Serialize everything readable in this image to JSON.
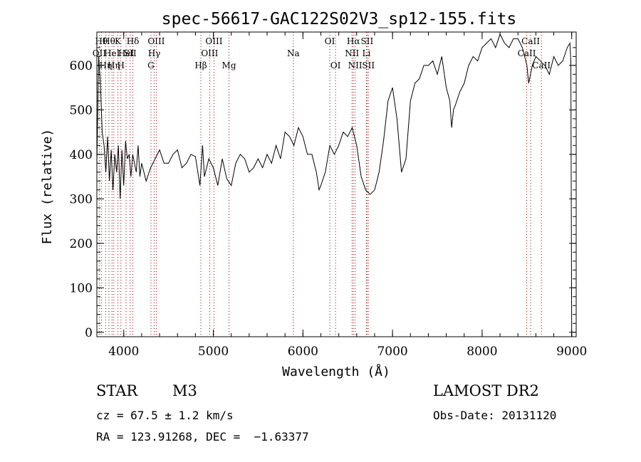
{
  "chart_data": {
    "type": "line",
    "title": "spec-56617-GAC122S02V3_sp12-155.fits",
    "xlabel": "Wavelength (Å)",
    "ylabel": "Flux (relative)",
    "xlim": [
      3700,
      9050
    ],
    "ylim": [
      -10,
      675
    ],
    "xticks": [
      4000,
      5000,
      6000,
      7000,
      8000,
      9000
    ],
    "yticks": [
      0,
      100,
      200,
      300,
      400,
      500,
      600
    ],
    "grid": false,
    "line_color": "#000000",
    "marker_color": "#8b0000",
    "series": [
      {
        "x": [
          3700,
          3720,
          3740,
          3760,
          3780,
          3800,
          3820,
          3840,
          3860,
          3880,
          3900,
          3920,
          3940,
          3960,
          3980,
          4000,
          4020,
          4040,
          4060,
          4080,
          4100,
          4120,
          4140,
          4160,
          4180,
          4200,
          4250,
          4300,
          4350,
          4400,
          4450,
          4500,
          4550,
          4600,
          4650,
          4700,
          4750,
          4800,
          4850,
          4880,
          4900,
          4950,
          5000,
          5050,
          5100,
          5150,
          5200,
          5250,
          5300,
          5350,
          5400,
          5450,
          5500,
          5550,
          5600,
          5650,
          5700,
          5750,
          5800,
          5850,
          5900,
          5950,
          6000,
          6050,
          6100,
          6150,
          6180,
          6200,
          6250,
          6300,
          6350,
          6400,
          6450,
          6500,
          6550,
          6600,
          6650,
          6700,
          6750,
          6800,
          6850,
          6900,
          6950,
          7000,
          7050,
          7100,
          7150,
          7200,
          7250,
          7300,
          7350,
          7400,
          7450,
          7500,
          7550,
          7600,
          7640,
          7660,
          7680,
          7700,
          7750,
          7800,
          7850,
          7900,
          7950,
          8000,
          8050,
          8100,
          8150,
          8200,
          8250,
          8300,
          8350,
          8400,
          8450,
          8500,
          8520,
          8540,
          8560,
          8600,
          8650,
          8700,
          8750,
          8800,
          8850,
          8900,
          8950,
          8980,
          8990,
          9000
        ],
        "y": [
          380,
          620,
          560,
          450,
          420,
          360,
          440,
          340,
          410,
          320,
          400,
          360,
          420,
          300,
          410,
          330,
          430,
          390,
          400,
          350,
          400,
          380,
          360,
          420,
          350,
          380,
          340,
          370,
          390,
          410,
          380,
          380,
          400,
          410,
          370,
          380,
          400,
          395,
          330,
          420,
          350,
          390,
          370,
          330,
          390,
          345,
          330,
          380,
          400,
          390,
          360,
          370,
          390,
          370,
          400,
          380,
          420,
          390,
          450,
          440,
          420,
          460,
          440,
          400,
          400,
          360,
          320,
          330,
          360,
          420,
          400,
          420,
          450,
          440,
          460,
          420,
          350,
          320,
          310,
          320,
          360,
          430,
          520,
          550,
          480,
          360,
          390,
          520,
          560,
          570,
          600,
          600,
          610,
          580,
          620,
          550,
          520,
          460,
          500,
          510,
          540,
          560,
          600,
          620,
          610,
          640,
          650,
          660,
          640,
          670,
          650,
          640,
          660,
          660,
          640,
          600,
          560,
          580,
          600,
          620,
          610,
          600,
          580,
          620,
          600,
          610,
          640,
          650,
          610,
          -10
        ]
      }
    ],
    "line_markers": [
      {
        "x": 3727,
        "label": "OII",
        "row": 2
      },
      {
        "x": 3750,
        "label": "Hθ",
        "row": 1
      },
      {
        "x": 3798,
        "label": "Hη",
        "row": 3
      },
      {
        "x": 3835,
        "label": "Hθ",
        "row": 1
      },
      {
        "x": 3869,
        "label": "HeI",
        "row": 2
      },
      {
        "x": 3889,
        "label": "Hη",
        "row": 3
      },
      {
        "x": 3934,
        "label": "K",
        "row": 1
      },
      {
        "x": 3968,
        "label": "H",
        "row": 3
      },
      {
        "x": 4026,
        "label": "HeI",
        "row": 2
      },
      {
        "x": 4072,
        "label": "SII",
        "row": 2
      },
      {
        "x": 4102,
        "label": "Hδ",
        "row": 1
      },
      {
        "x": 4304,
        "label": "G",
        "row": 3
      },
      {
        "x": 4340,
        "label": "Hγ",
        "row": 2
      },
      {
        "x": 4363,
        "label": "OIII",
        "row": 1
      },
      {
        "x": 4861,
        "label": "Hβ",
        "row": 3
      },
      {
        "x": 4959,
        "label": "OIII",
        "row": 2
      },
      {
        "x": 5007,
        "label": "OIII",
        "row": 1
      },
      {
        "x": 5175,
        "label": "Mg",
        "row": 3
      },
      {
        "x": 5893,
        "label": "Na",
        "row": 2
      },
      {
        "x": 6300,
        "label": "OI",
        "row": 1
      },
      {
        "x": 6364,
        "label": "OI",
        "row": 3
      },
      {
        "x": 6548,
        "label": "NII",
        "row": 2
      },
      {
        "x": 6563,
        "label": "Hα",
        "row": 1
      },
      {
        "x": 6583,
        "label": "NII",
        "row": 3
      },
      {
        "x": 6708,
        "label": "Li",
        "row": 2
      },
      {
        "x": 6716,
        "label": "SII",
        "row": 1
      },
      {
        "x": 6731,
        "label": "SII",
        "row": 3
      },
      {
        "x": 8498,
        "label": "CaII",
        "row": 2
      },
      {
        "x": 8542,
        "label": "CaII",
        "row": 1
      },
      {
        "x": 8662,
        "label": "CaII",
        "row": 3
      }
    ]
  },
  "footer": {
    "object_class": "STAR",
    "subclass": "M3",
    "survey": "LAMOST DR2",
    "cz": "cz = 67.5 ± 1.2 km/s",
    "obs_date": "Obs-Date: 20131120",
    "radec": "RA = 123.91268, DEC =  −1.63377"
  }
}
